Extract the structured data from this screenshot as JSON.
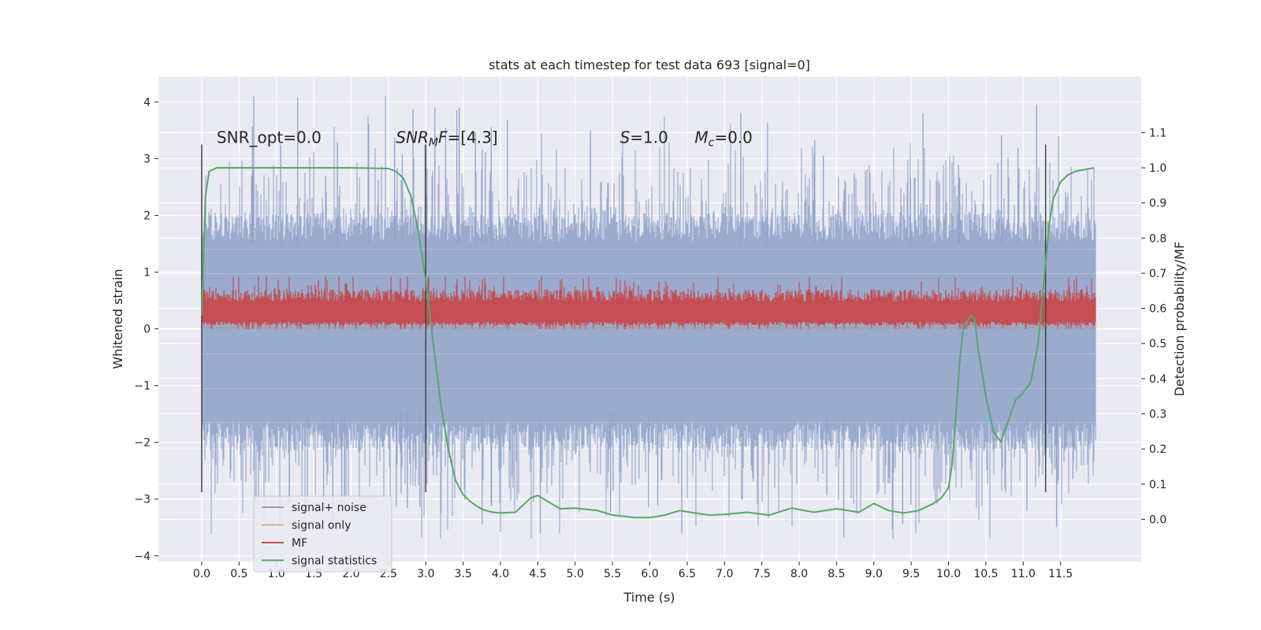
{
  "chart_data": {
    "type": "line",
    "title": "stats at each timestep for test data 693 [signal=0]",
    "xlabel": "Time (s)",
    "ylabel": "Whitened strain",
    "y2label": "Detection probability/MF",
    "xlim": [
      -0.58,
      12.58
    ],
    "ylim": [
      -4.1,
      4.45
    ],
    "y2lim": [
      -0.12,
      1.26
    ],
    "xticks": [
      "0.0",
      "0.5",
      "1.0",
      "1.5",
      "2.0",
      "2.5",
      "3.0",
      "3.5",
      "4.0",
      "4.5",
      "5.0",
      "5.5",
      "6.0",
      "6.5",
      "7.0",
      "7.5",
      "8.0",
      "8.5",
      "9.0",
      "9.5",
      "10.0",
      "10.5",
      "11.0",
      "11.5"
    ],
    "yticks": [
      "4",
      "3",
      "2",
      "1",
      "0",
      "−1",
      "−2",
      "−3",
      "−4"
    ],
    "y2ticks": [
      "1.1",
      "1.0",
      "0.9",
      "0.8",
      "0.7",
      "0.6",
      "0.5",
      "0.4",
      "0.3",
      "0.2",
      "0.1",
      "0.0"
    ],
    "grid": true,
    "legend_position": "lower-left",
    "legend": [
      {
        "label": "signal+ noise",
        "color": "#4c72b0"
      },
      {
        "label": "signal only",
        "color": "#dd8452"
      },
      {
        "label": "MF",
        "color": "#c44e52"
      },
      {
        "label": "signal statistics",
        "color": "#55a868"
      }
    ],
    "annotations": [
      {
        "x": 0.2,
        "y": 3.28,
        "parts": [
          {
            "t": "SNR_opt=0.0",
            "i": false
          }
        ]
      },
      {
        "x": 2.6,
        "y": 3.28,
        "parts": [
          {
            "t": "SNR",
            "i": true
          },
          {
            "t": "M",
            "i": true,
            "sub": true
          },
          {
            "t": "F",
            "i": true
          },
          {
            "t": "=[4.3]",
            "i": false
          }
        ]
      },
      {
        "x": 5.6,
        "y": 3.28,
        "parts": [
          {
            "t": "S",
            "i": true
          },
          {
            "t": "=1.0",
            "i": false
          }
        ]
      },
      {
        "x": 6.6,
        "y": 3.28,
        "parts": [
          {
            "t": "M",
            "i": true
          },
          {
            "t": "c",
            "i": true,
            "sub": true
          },
          {
            "t": "=0.0",
            "i": false
          }
        ]
      }
    ],
    "vertical_markers": {
      "x": [
        0.0,
        3.0,
        11.3
      ],
      "y_range": [
        -2.88,
        3.25
      ],
      "color": "#444444"
    },
    "noise_series": {
      "name": "signal+ noise",
      "x_range": [
        0.0,
        11.97
      ],
      "core_range": [
        -1.9,
        1.8
      ],
      "peak_max": 4.1,
      "trough_min": -3.7
    },
    "mf_series": {
      "name": "MF",
      "x_range": [
        0.0,
        11.97
      ],
      "range": [
        0.0,
        0.8
      ]
    },
    "signal_only_series": {
      "name": "signal only",
      "x_range": [
        0.0,
        11.97
      ],
      "value": 0.02
    },
    "statistics_series": {
      "name": "signal statistics",
      "axis": "right",
      "x": [
        0.0,
        0.05,
        0.1,
        0.15,
        0.2,
        0.3,
        0.5,
        1.0,
        1.5,
        2.0,
        2.5,
        2.6,
        2.7,
        2.8,
        2.9,
        3.0,
        3.1,
        3.2,
        3.3,
        3.4,
        3.5,
        3.6,
        3.7,
        3.8,
        3.9,
        4.0,
        4.2,
        4.4,
        4.5,
        4.6,
        4.8,
        5.0,
        5.3,
        5.5,
        5.8,
        6.0,
        6.2,
        6.4,
        6.6,
        6.8,
        7.0,
        7.3,
        7.6,
        7.9,
        8.2,
        8.5,
        8.8,
        9.0,
        9.2,
        9.4,
        9.6,
        9.8,
        9.9,
        10.0,
        10.05,
        10.1,
        10.15,
        10.2,
        10.3,
        10.35,
        10.4,
        10.5,
        10.6,
        10.7,
        10.8,
        10.9,
        11.0,
        11.1,
        11.2,
        11.3,
        11.35,
        11.4,
        11.5,
        11.6,
        11.7,
        11.95
      ],
      "y": [
        0.58,
        0.92,
        0.99,
        0.995,
        1.0,
        1.0,
        1.0,
        1.0,
        1.0,
        1.0,
        0.998,
        0.99,
        0.97,
        0.92,
        0.82,
        0.68,
        0.5,
        0.33,
        0.2,
        0.11,
        0.07,
        0.05,
        0.035,
        0.025,
        0.02,
        0.018,
        0.02,
        0.06,
        0.068,
        0.055,
        0.03,
        0.032,
        0.025,
        0.012,
        0.005,
        0.005,
        0.012,
        0.025,
        0.018,
        0.012,
        0.014,
        0.02,
        0.012,
        0.032,
        0.02,
        0.03,
        0.02,
        0.045,
        0.025,
        0.018,
        0.025,
        0.045,
        0.06,
        0.09,
        0.16,
        0.3,
        0.45,
        0.55,
        0.58,
        0.57,
        0.48,
        0.35,
        0.25,
        0.22,
        0.28,
        0.34,
        0.36,
        0.39,
        0.5,
        0.73,
        0.84,
        0.91,
        0.96,
        0.98,
        0.99,
        1.0
      ]
    }
  }
}
